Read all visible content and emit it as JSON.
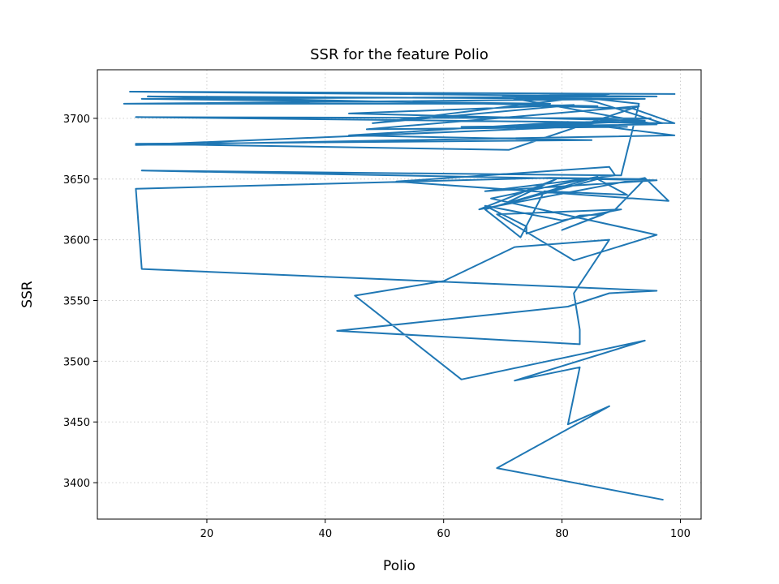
{
  "chart_data": {
    "type": "line",
    "title": "SSR for the feature Polio",
    "xlabel": "Polio",
    "ylabel": "SSR",
    "xlim": [
      1.5,
      103.5
    ],
    "ylim": [
      3370,
      3740
    ],
    "xticks": [
      20,
      40,
      60,
      80,
      100
    ],
    "yticks": [
      3400,
      3450,
      3500,
      3550,
      3600,
      3650,
      3700
    ],
    "grid": true,
    "line_color": "#1f77b4",
    "series": [
      {
        "x": [
          99,
          7,
          96,
          9,
          78,
          6,
          94,
          10,
          86,
          72,
          92,
          99,
          8,
          95,
          68,
          94,
          44,
          82,
          48,
          88,
          70,
          96,
          63,
          91,
          47,
          93,
          71,
          8,
          85,
          44,
          81,
          99,
          8,
          97,
          86,
          78,
          93,
          90,
          9,
          96,
          67,
          89,
          88,
          52,
          98,
          94,
          66,
          79,
          70,
          86,
          91,
          77,
          73,
          67,
          86,
          68,
          96,
          82,
          69,
          90,
          80,
          67,
          74,
          74,
          83,
          87,
          80,
          89,
          94,
          78,
          8,
          9,
          96,
          88,
          81,
          42,
          83,
          83,
          82,
          88,
          72,
          60,
          45,
          63,
          94,
          72,
          83,
          81,
          88,
          69,
          97
        ],
        "y": [
          3720,
          3722,
          3718,
          3716,
          3712,
          3712,
          3716,
          3718,
          3710,
          3711,
          3708,
          3696,
          3701,
          3700,
          3692,
          3698,
          3704,
          3711,
          3696,
          3720,
          3718,
          3695,
          3693,
          3693,
          3691,
          3710,
          3674,
          3679,
          3682,
          3686,
          3697,
          3686,
          3678,
          3696,
          3713,
          3720,
          3712,
          3653,
          3657,
          3649,
          3640,
          3653,
          3660,
          3648,
          3632,
          3651,
          3625,
          3650,
          3629,
          3650,
          3637,
          3640,
          3602,
          3625,
          3652,
          3634,
          3604,
          3583,
          3621,
          3625,
          3616,
          3628,
          3611,
          3605,
          3620,
          3621,
          3608,
          3625,
          3650,
          3651,
          3642,
          3576,
          3558,
          3556,
          3545,
          3525,
          3514,
          3526,
          3556,
          3600,
          3594,
          3566,
          3554,
          3485,
          3517,
          3484,
          3495,
          3448,
          3463,
          3412,
          3386
        ]
      }
    ]
  }
}
